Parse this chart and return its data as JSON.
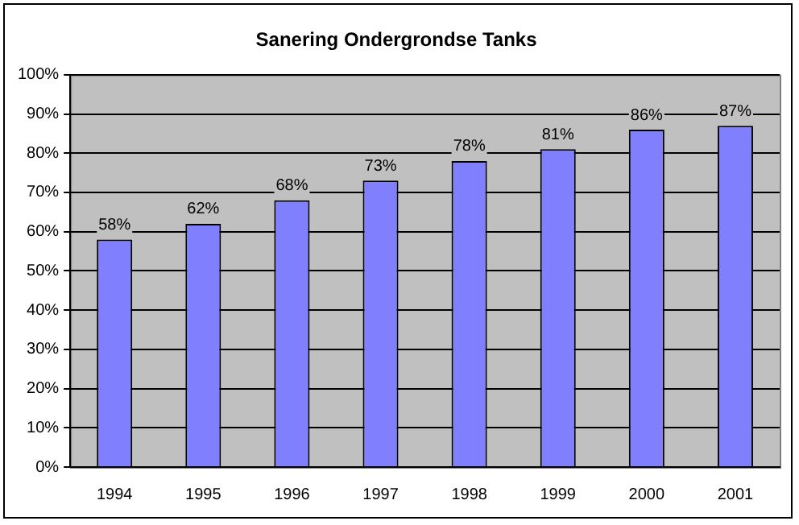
{
  "chart_data": {
    "type": "bar",
    "title": "Sanering Ondergrondse Tanks",
    "categories": [
      "1994",
      "1995",
      "1996",
      "1997",
      "1998",
      "1999",
      "2000",
      "2001"
    ],
    "values": [
      58,
      62,
      68,
      73,
      78,
      81,
      86,
      87
    ],
    "value_labels": [
      "58%",
      "62%",
      "68%",
      "73%",
      "78%",
      "81%",
      "86%",
      "87%"
    ],
    "color": "#8080ff",
    "ylim": [
      0,
      100
    ],
    "yticks": [
      {
        "value": 0,
        "label": "0%"
      },
      {
        "value": 10,
        "label": "10%"
      },
      {
        "value": 20,
        "label": "20%"
      },
      {
        "value": 30,
        "label": "30%"
      },
      {
        "value": 40,
        "label": "40%"
      },
      {
        "value": 50,
        "label": "50%"
      },
      {
        "value": 60,
        "label": "60%"
      },
      {
        "value": 70,
        "label": "70%"
      },
      {
        "value": 80,
        "label": "80%"
      },
      {
        "value": 90,
        "label": "90%"
      },
      {
        "value": 100,
        "label": "100%"
      }
    ],
    "grid": "y",
    "legend": false
  }
}
